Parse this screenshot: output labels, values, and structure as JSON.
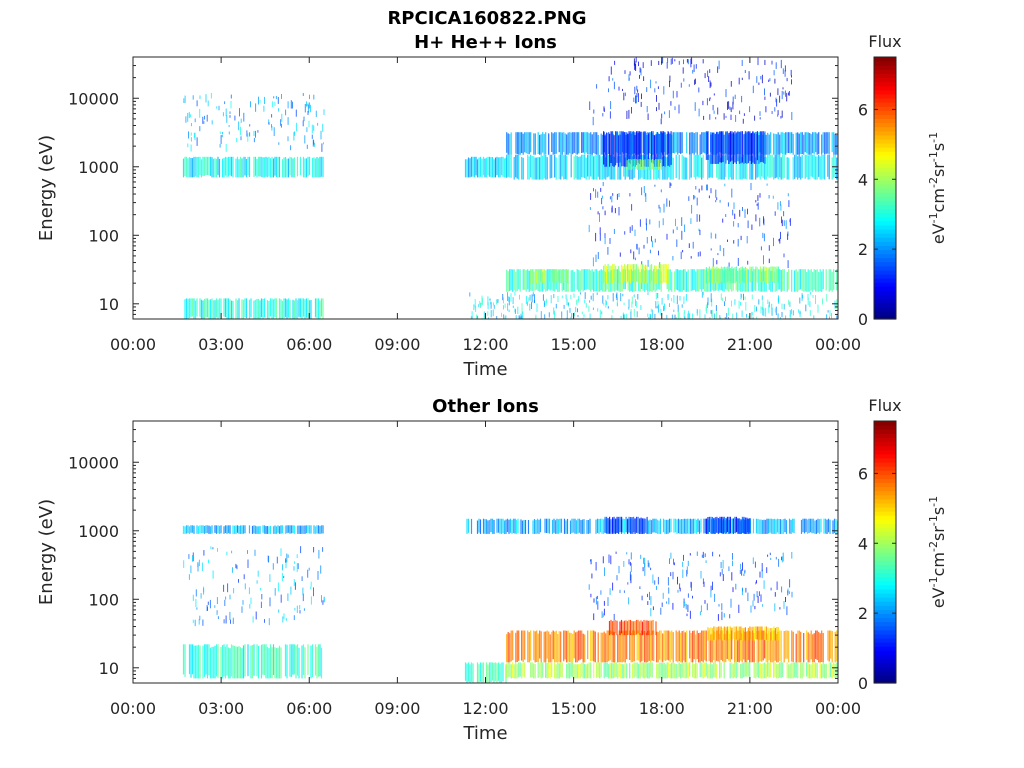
{
  "figure_title": "RPCICA160822.PNG",
  "chart_data": [
    {
      "type": "heatmap",
      "title": "H+ He++ Ions",
      "xlabel": "Time",
      "ylabel": "Energy (eV)",
      "y_scale": "log",
      "ylim": [
        6,
        40000
      ],
      "xlim": [
        0,
        24
      ],
      "x_ticks": [
        "00:00",
        "03:00",
        "06:00",
        "09:00",
        "12:00",
        "15:00",
        "18:00",
        "21:00",
        "00:00"
      ],
      "y_ticks": [
        "10",
        "100",
        "1000",
        "10000"
      ],
      "colorbar": {
        "label": "Flux",
        "unit": "eV-1cm-2sr-1s-1",
        "range": [
          0,
          7.5
        ],
        "ticks": [
          "0",
          "2",
          "4",
          "6"
        ],
        "colormap": "jet"
      },
      "bands": [
        {
          "t": [
            1.7,
            6.5
          ],
          "e": [
            700,
            1400
          ],
          "flux": 2.8
        },
        {
          "t": [
            11.3,
            12.7
          ],
          "e": [
            700,
            1400
          ],
          "flux": 2.4
        },
        {
          "t": [
            12.7,
            24
          ],
          "e": [
            650,
            1500
          ],
          "flux": 2.6
        },
        {
          "t": [
            12.7,
            24
          ],
          "e": [
            1500,
            3200
          ],
          "flux": 2.0
        },
        {
          "t": [
            16.0,
            18.3
          ],
          "e": [
            1000,
            3300
          ],
          "flux": 1.2
        },
        {
          "t": [
            19.5,
            21.5
          ],
          "e": [
            1100,
            3300
          ],
          "flux": 1.2
        },
        {
          "t": [
            16.8,
            18.0
          ],
          "e": [
            900,
            1300
          ],
          "flux": 3.6
        },
        {
          "t": [
            12.7,
            24
          ],
          "e": [
            15,
            32
          ],
          "flux": 3.2
        },
        {
          "t": [
            13.5,
            14.8
          ],
          "e": [
            20,
            32
          ],
          "flux": 4.0
        },
        {
          "t": [
            16.0,
            18.2
          ],
          "e": [
            20,
            38
          ],
          "flux": 4.2
        },
        {
          "t": [
            19.5,
            22.0
          ],
          "e": [
            20,
            35
          ],
          "flux": 3.7
        },
        {
          "t": [
            1.7,
            6.5
          ],
          "e": [
            6,
            12
          ],
          "flux": 3.0
        }
      ],
      "sparse": [
        {
          "t": [
            1.7,
            6.5
          ],
          "e": [
            2000,
            12000
          ],
          "flux": 2.2
        },
        {
          "t": [
            15.5,
            22.5
          ],
          "e": [
            5000,
            40000
          ],
          "flux": 1.0
        },
        {
          "t": [
            15.5,
            22.5
          ],
          "e": [
            40,
            600
          ],
          "flux": 1.4
        },
        {
          "t": [
            11.3,
            24
          ],
          "e": [
            6,
            15
          ],
          "flux": 2.6
        }
      ]
    },
    {
      "type": "heatmap",
      "title": "Other Ions",
      "xlabel": "Time",
      "ylabel": "Energy (eV)",
      "y_scale": "log",
      "ylim": [
        6,
        40000
      ],
      "xlim": [
        0,
        24
      ],
      "x_ticks": [
        "00:00",
        "03:00",
        "06:00",
        "09:00",
        "12:00",
        "15:00",
        "18:00",
        "21:00",
        "00:00"
      ],
      "y_ticks": [
        "10",
        "100",
        "1000",
        "10000"
      ],
      "colorbar": {
        "label": "Flux",
        "unit": "eV-1cm-2sr-1s-1",
        "range": [
          0,
          7.5
        ],
        "ticks": [
          "0",
          "2",
          "4",
          "6"
        ],
        "colormap": "jet"
      },
      "bands": [
        {
          "t": [
            1.7,
            6.5
          ],
          "e": [
            900,
            1200
          ],
          "flux": 2.2
        },
        {
          "t": [
            11.3,
            24
          ],
          "e": [
            900,
            1500
          ],
          "flux": 2.2
        },
        {
          "t": [
            16.0,
            17.5
          ],
          "e": [
            900,
            1600
          ],
          "flux": 1.3
        },
        {
          "t": [
            19.5,
            21.0
          ],
          "e": [
            900,
            1600
          ],
          "flux": 1.3
        },
        {
          "t": [
            1.7,
            6.5
          ],
          "e": [
            7,
            22
          ],
          "flux": 3.1
        },
        {
          "t": [
            11.3,
            12.7
          ],
          "e": [
            6,
            12
          ],
          "flux": 3.3
        },
        {
          "t": [
            12.7,
            24
          ],
          "e": [
            12,
            35
          ],
          "flux": 5.6
        },
        {
          "t": [
            12.7,
            24
          ],
          "e": [
            7,
            12
          ],
          "flux": 4.0
        },
        {
          "t": [
            16.2,
            17.8
          ],
          "e": [
            30,
            50
          ],
          "flux": 6.0
        },
        {
          "t": [
            19.5,
            22.0
          ],
          "e": [
            25,
            40
          ],
          "flux": 5.2
        }
      ],
      "sparse": [
        {
          "t": [
            15.5,
            22.5
          ],
          "e": [
            60,
            500
          ],
          "flux": 1.6
        },
        {
          "t": [
            1.7,
            6.5
          ],
          "e": [
            50,
            600
          ],
          "flux": 2.0
        }
      ]
    }
  ]
}
